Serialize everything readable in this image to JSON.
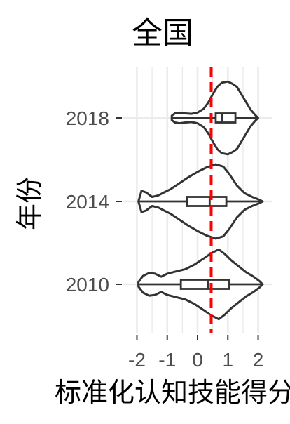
{
  "chart_data": {
    "type": "violin",
    "title": "全国",
    "xlabel": "标准化认知技能得分",
    "ylabel": "年份",
    "xlim": [
      -2.45,
      2.45
    ],
    "x_ticks": [
      -2,
      -1,
      0,
      1,
      2
    ],
    "x_tick_labels": [
      "-2",
      "-1",
      "0",
      "1",
      "2"
    ],
    "categories": [
      "2018",
      "2014",
      "2010"
    ],
    "grid": true,
    "reference_line": {
      "x": 0.45,
      "color": "#ff0000",
      "style": "dashed"
    },
    "series": [
      {
        "name": "2018",
        "range": [
          -0.85,
          2.0
        ],
        "box": {
          "q1": 0.6,
          "median": 0.8,
          "q3": 1.25
        },
        "density": [
          [
            -0.85,
            0.06
          ],
          [
            -0.75,
            0.12
          ],
          [
            -0.6,
            0.14
          ],
          [
            -0.4,
            0.12
          ],
          [
            -0.2,
            0.11
          ],
          [
            0.0,
            0.14
          ],
          [
            0.2,
            0.24
          ],
          [
            0.35,
            0.4
          ],
          [
            0.5,
            0.62
          ],
          [
            0.65,
            0.82
          ],
          [
            0.8,
            0.93
          ],
          [
            1.0,
            0.96
          ],
          [
            1.15,
            0.9
          ],
          [
            1.3,
            0.82
          ],
          [
            1.45,
            0.62
          ],
          [
            1.6,
            0.42
          ],
          [
            1.75,
            0.22
          ],
          [
            1.9,
            0.08
          ],
          [
            2.0,
            0.0
          ]
        ]
      },
      {
        "name": "2014",
        "range": [
          -1.95,
          2.15
        ],
        "box": {
          "q1": -0.35,
          "median": 0.4,
          "q3": 0.95
        },
        "density": [
          [
            -1.95,
            0.0
          ],
          [
            -1.85,
            0.28
          ],
          [
            -1.7,
            0.24
          ],
          [
            -1.5,
            0.12
          ],
          [
            -1.3,
            0.16
          ],
          [
            -1.1,
            0.24
          ],
          [
            -0.9,
            0.32
          ],
          [
            -0.6,
            0.48
          ],
          [
            -0.3,
            0.64
          ],
          [
            0.0,
            0.78
          ],
          [
            0.3,
            0.9
          ],
          [
            0.6,
            0.98
          ],
          [
            0.85,
            0.92
          ],
          [
            1.05,
            0.72
          ],
          [
            1.3,
            0.42
          ],
          [
            1.55,
            0.22
          ],
          [
            1.8,
            0.12
          ],
          [
            2.0,
            0.06
          ],
          [
            2.15,
            0.0
          ]
        ]
      },
      {
        "name": "2010",
        "range": [
          -1.95,
          2.15
        ],
        "box": {
          "q1": -0.55,
          "median": 0.35,
          "q3": 1.05
        },
        "density": [
          [
            -1.95,
            0.06
          ],
          [
            -1.8,
            0.22
          ],
          [
            -1.6,
            0.3
          ],
          [
            -1.4,
            0.28
          ],
          [
            -1.2,
            0.2
          ],
          [
            -1.0,
            0.28
          ],
          [
            -0.7,
            0.34
          ],
          [
            -0.4,
            0.4
          ],
          [
            -0.1,
            0.52
          ],
          [
            0.2,
            0.68
          ],
          [
            0.45,
            0.82
          ],
          [
            0.7,
            0.92
          ],
          [
            0.9,
            0.8
          ],
          [
            1.1,
            0.64
          ],
          [
            1.35,
            0.48
          ],
          [
            1.6,
            0.32
          ],
          [
            1.85,
            0.2
          ],
          [
            2.05,
            0.08
          ],
          [
            2.15,
            0.0
          ]
        ]
      }
    ]
  }
}
